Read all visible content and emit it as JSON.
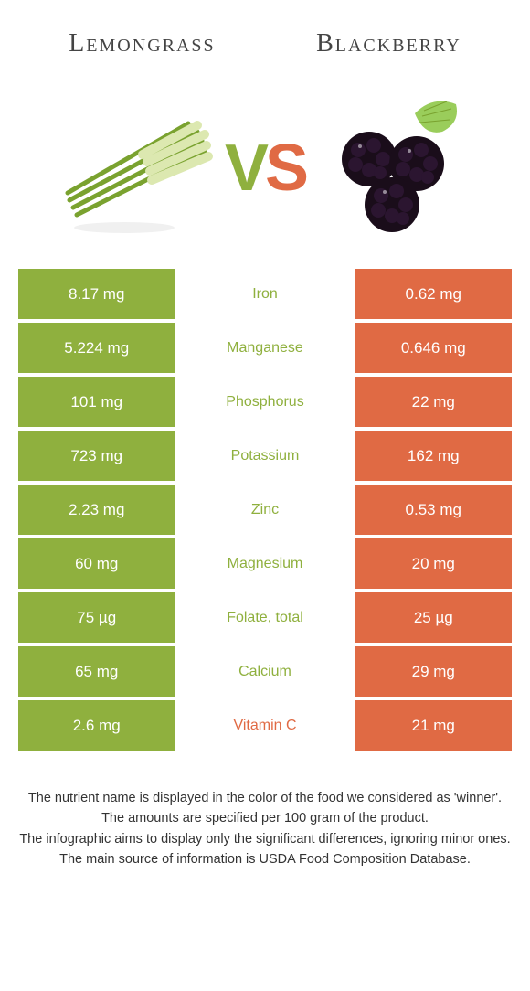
{
  "header": {
    "left_title": "Lemongrass",
    "right_title": "Blackberry"
  },
  "vs": {
    "v": "V",
    "s": "S"
  },
  "colors": {
    "left": "#8fb03e",
    "right": "#e06a44",
    "bg": "#ffffff",
    "text": "#333333"
  },
  "table": {
    "rows": [
      {
        "left": "8.17 mg",
        "label": "Iron",
        "right": "0.62 mg",
        "winner": "left"
      },
      {
        "left": "5.224 mg",
        "label": "Manganese",
        "right": "0.646 mg",
        "winner": "left"
      },
      {
        "left": "101 mg",
        "label": "Phosphorus",
        "right": "22 mg",
        "winner": "left"
      },
      {
        "left": "723 mg",
        "label": "Potassium",
        "right": "162 mg",
        "winner": "left"
      },
      {
        "left": "2.23 mg",
        "label": "Zinc",
        "right": "0.53 mg",
        "winner": "left"
      },
      {
        "left": "60 mg",
        "label": "Magnesium",
        "right": "20 mg",
        "winner": "left"
      },
      {
        "left": "75 µg",
        "label": "Folate, total",
        "right": "25 µg",
        "winner": "left"
      },
      {
        "left": "65 mg",
        "label": "Calcium",
        "right": "29 mg",
        "winner": "left"
      },
      {
        "left": "2.6 mg",
        "label": "Vitamin C",
        "right": "21 mg",
        "winner": "right"
      }
    ]
  },
  "footer": {
    "line1": "The nutrient name is displayed in the color of the food we considered as 'winner'.",
    "line2": "The amounts are specified per 100 gram of the product.",
    "line3": "The infographic aims to display only the significant differences, ignoring minor ones.",
    "line4": "The main source of information is USDA Food Composition Database."
  }
}
